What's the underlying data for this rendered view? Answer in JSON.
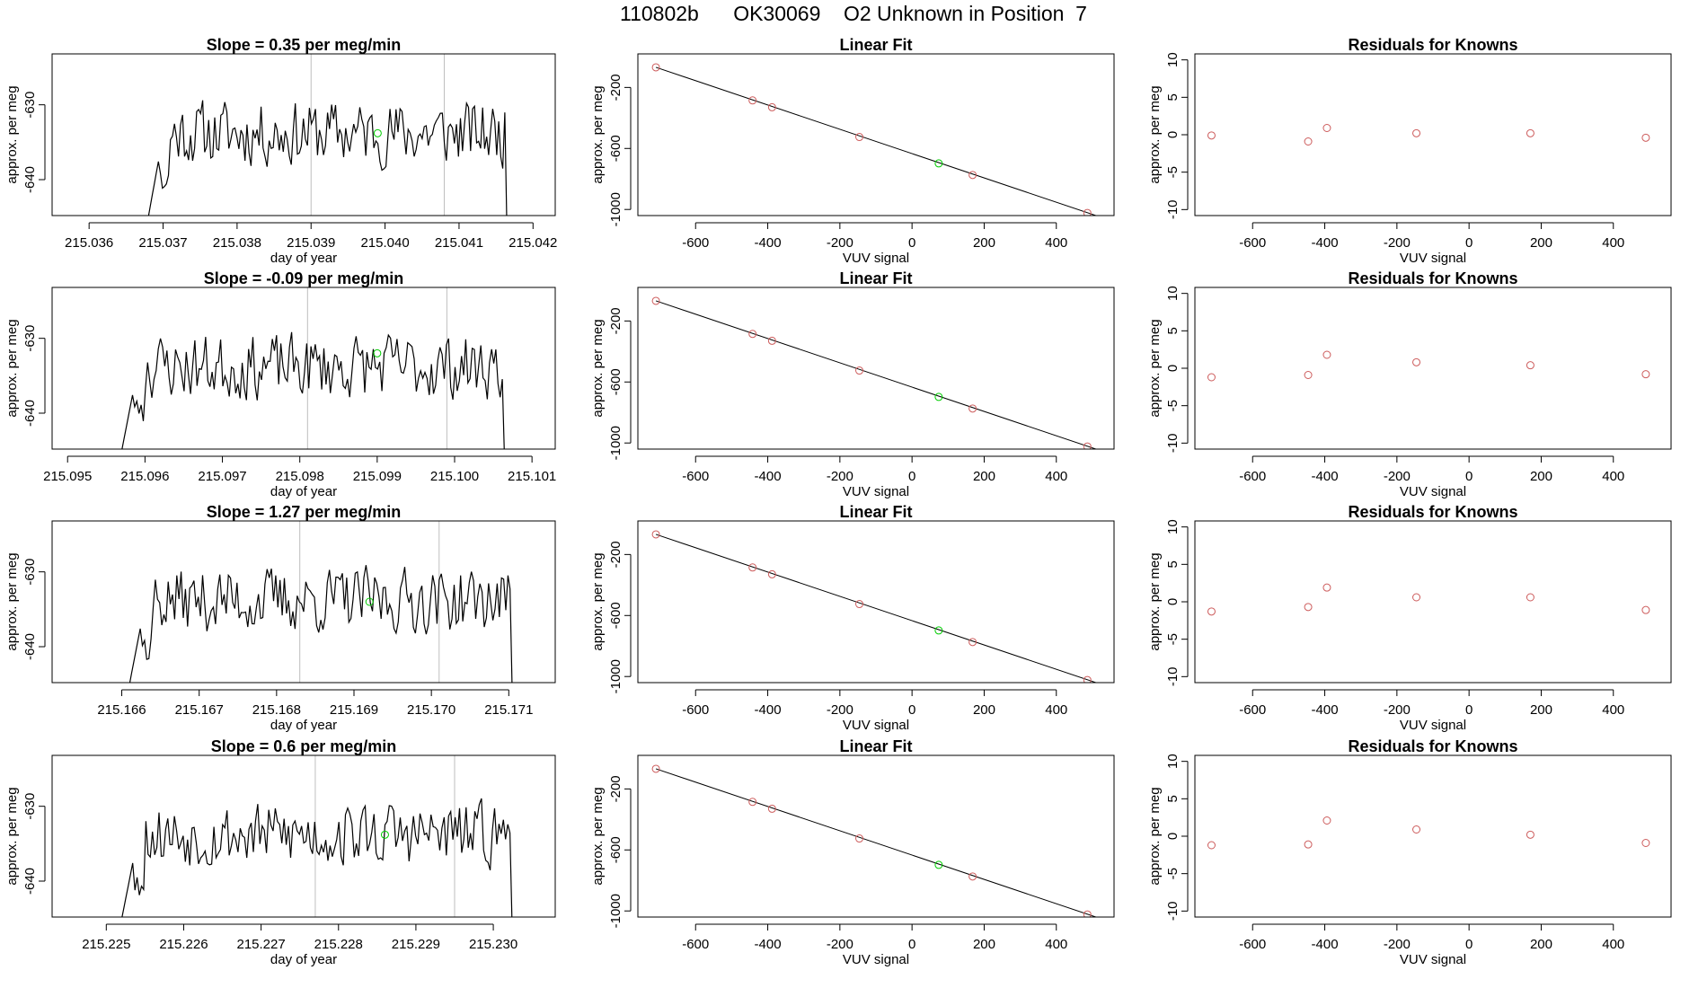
{
  "page_title": "110802b      OK30069    O2 Unknown in Position  7",
  "colors": {
    "trace": "#000000",
    "vline": "#bebebe",
    "known": "#cd5c5c",
    "unknown": "#00cd00",
    "fit": "#000000"
  },
  "chart_data": [
    {
      "type": "line",
      "title": "Slope =  0.35  per meg/min",
      "xlabel": "day of year",
      "ylabel": "approx. per meg",
      "xlim": [
        215.0355,
        215.0423
      ],
      "ylim": [
        -644.8,
        -623.2
      ],
      "xticks": [
        215.036,
        215.037,
        215.038,
        215.039,
        215.04,
        215.041,
        215.042
      ],
      "xtick_labels": [
        "215.036",
        "215.037",
        "215.038",
        "215.039",
        "215.040",
        "215.041",
        "215.042"
      ],
      "yticks": [
        -630,
        -640
      ],
      "ytick_labels": [
        "-630",
        "-640"
      ],
      "trace_x_range": [
        215.0368,
        215.0417
      ],
      "vlines": [
        215.039,
        215.0408
      ],
      "marker": {
        "x": 215.0399,
        "y": -633.8
      },
      "seed": 11
    },
    {
      "type": "scatter",
      "title": "Linear Fit",
      "xlabel": "VUV signal",
      "ylabel": "approx. per meg",
      "xlim": [
        -760,
        560
      ],
      "ylim": [
        -1040,
        20
      ],
      "xticks": [
        -600,
        -400,
        -200,
        0,
        200,
        400
      ],
      "xtick_labels": [
        "-600",
        "-400",
        "-200",
        "0",
        "200",
        "400"
      ],
      "yticks": [
        -200,
        -600,
        -1000
      ],
      "ytick_labels": [
        "-200",
        "-600",
        "-1000"
      ],
      "knowns": {
        "x": [
          -710,
          -442,
          -388,
          -146,
          168,
          486
        ],
        "y": [
          -68,
          -285,
          -330,
          -525,
          -774,
          -1023
        ]
      },
      "unknown": {
        "x": 74,
        "y": -698
      },
      "fit_line": {
        "x": [
          -710,
          545
        ],
        "y": [
          -68,
          -1068
        ]
      }
    },
    {
      "type": "scatter",
      "title": "Residuals for Knowns",
      "xlabel": "VUV signal",
      "ylabel": "approx. per meg",
      "xlim": [
        -760,
        560
      ],
      "ylim": [
        -10.8,
        10.8
      ],
      "xticks": [
        -600,
        -400,
        -200,
        0,
        200,
        400
      ],
      "xtick_labels": [
        "-600",
        "-400",
        "-200",
        "0",
        "200",
        "400"
      ],
      "yticks": [
        -10,
        -5,
        0,
        5,
        10
      ],
      "ytick_labels": [
        "-10",
        "-5",
        "0",
        "5",
        "10"
      ],
      "points": {
        "x": [
          -714,
          -446,
          -394,
          -146,
          170,
          490
        ],
        "y": [
          -0.1,
          -0.9,
          0.9,
          0.2,
          0.2,
          -0.4
        ]
      }
    },
    {
      "type": "line",
      "title": "Slope =  -0.09  per meg/min",
      "xlabel": "day of year",
      "ylabel": "approx. per meg",
      "xlim": [
        215.0948,
        215.1013
      ],
      "ylim": [
        -644.8,
        -623.2
      ],
      "xticks": [
        215.095,
        215.096,
        215.097,
        215.098,
        215.099,
        215.1,
        215.101
      ],
      "xtick_labels": [
        "215.095",
        "215.096",
        "215.097",
        "215.098",
        "215.099",
        "215.100",
        "215.101"
      ],
      "yticks": [
        -630,
        -640
      ],
      "ytick_labels": [
        "-630",
        "-640"
      ],
      "trace_x_range": [
        215.0957,
        215.1007
      ],
      "vlines": [
        215.0981,
        215.0999
      ],
      "marker": {
        "x": 215.099,
        "y": -632.0
      },
      "seed": 23
    },
    {
      "type": "scatter",
      "title": "Linear Fit",
      "xlabel": "VUV signal",
      "ylabel": "approx. per meg",
      "xlim": [
        -760,
        560
      ],
      "ylim": [
        -1040,
        20
      ],
      "xticks": [
        -600,
        -400,
        -200,
        0,
        200,
        400
      ],
      "xtick_labels": [
        "-600",
        "-400",
        "-200",
        "0",
        "200",
        "400"
      ],
      "yticks": [
        -200,
        -600,
        -1000
      ],
      "ytick_labels": [
        "-200",
        "-600",
        "-1000"
      ],
      "knowns": {
        "x": [
          -710,
          -442,
          -388,
          -146,
          168,
          486
        ],
        "y": [
          -68,
          -285,
          -330,
          -525,
          -774,
          -1023
        ]
      },
      "unknown": {
        "x": 74,
        "y": -698
      },
      "fit_line": {
        "x": [
          -710,
          545
        ],
        "y": [
          -68,
          -1068
        ]
      }
    },
    {
      "type": "scatter",
      "title": "Residuals for Knowns",
      "xlabel": "VUV signal",
      "ylabel": "approx. per meg",
      "xlim": [
        -760,
        560
      ],
      "ylim": [
        -10.8,
        10.8
      ],
      "xticks": [
        -600,
        -400,
        -200,
        0,
        200,
        400
      ],
      "xtick_labels": [
        "-600",
        "-400",
        "-200",
        "0",
        "200",
        "400"
      ],
      "yticks": [
        -10,
        -5,
        0,
        5,
        10
      ],
      "ytick_labels": [
        "-10",
        "-5",
        "0",
        "5",
        "10"
      ],
      "points": {
        "x": [
          -714,
          -446,
          -394,
          -146,
          170,
          490
        ],
        "y": [
          -1.2,
          -0.9,
          1.8,
          0.8,
          0.4,
          -0.8
        ]
      }
    },
    {
      "type": "line",
      "title": "Slope =  1.27  per meg/min",
      "xlabel": "day of year",
      "ylabel": "approx. per meg",
      "xlim": [
        215.1651,
        215.1716
      ],
      "ylim": [
        -644.8,
        -623.2
      ],
      "xticks": [
        215.166,
        215.167,
        215.168,
        215.169,
        215.17,
        215.171
      ],
      "xtick_labels": [
        "215.166",
        "215.167",
        "215.168",
        "215.169",
        "215.170",
        "215.171"
      ],
      "yticks": [
        -630,
        -640
      ],
      "ytick_labels": [
        "-630",
        "-640"
      ],
      "trace_x_range": [
        215.1661,
        215.1711
      ],
      "vlines": [
        215.1683,
        215.1701
      ],
      "marker": {
        "x": 215.1692,
        "y": -634.0
      },
      "seed": 37
    },
    {
      "type": "scatter",
      "title": "Linear Fit",
      "xlabel": "VUV signal",
      "ylabel": "approx. per meg",
      "xlim": [
        -760,
        560
      ],
      "ylim": [
        -1040,
        20
      ],
      "xticks": [
        -600,
        -400,
        -200,
        0,
        200,
        400
      ],
      "xtick_labels": [
        "-600",
        "-400",
        "-200",
        "0",
        "200",
        "400"
      ],
      "yticks": [
        -200,
        -600,
        -1000
      ],
      "ytick_labels": [
        "-200",
        "-600",
        "-1000"
      ],
      "knowns": {
        "x": [
          -710,
          -442,
          -388,
          -146,
          168,
          486
        ],
        "y": [
          -68,
          -285,
          -330,
          -525,
          -774,
          -1023
        ]
      },
      "unknown": {
        "x": 74,
        "y": -698
      },
      "fit_line": {
        "x": [
          -710,
          545
        ],
        "y": [
          -68,
          -1068
        ]
      }
    },
    {
      "type": "scatter",
      "title": "Residuals for Knowns",
      "xlabel": "VUV signal",
      "ylabel": "approx. per meg",
      "xlim": [
        -760,
        560
      ],
      "ylim": [
        -10.8,
        10.8
      ],
      "xticks": [
        -600,
        -400,
        -200,
        0,
        200,
        400
      ],
      "xtick_labels": [
        "-600",
        "-400",
        "-200",
        "0",
        "200",
        "400"
      ],
      "yticks": [
        -10,
        -5,
        0,
        5,
        10
      ],
      "ytick_labels": [
        "-10",
        "-5",
        "0",
        "5",
        "10"
      ],
      "points": {
        "x": [
          -714,
          -446,
          -394,
          -146,
          170,
          490
        ],
        "y": [
          -1.3,
          -0.7,
          1.9,
          0.6,
          0.6,
          -1.1
        ]
      }
    },
    {
      "type": "line",
      "title": "Slope =  0.6  per meg/min",
      "xlabel": "day of year",
      "ylabel": "approx. per meg",
      "xlim": [
        215.2243,
        215.2308
      ],
      "ylim": [
        -644.8,
        -623.2
      ],
      "xticks": [
        215.225,
        215.226,
        215.227,
        215.228,
        215.229,
        215.23
      ],
      "xtick_labels": [
        "215.225",
        "215.226",
        "215.227",
        "215.228",
        "215.229",
        "215.230"
      ],
      "yticks": [
        -630,
        -640
      ],
      "ytick_labels": [
        "-630",
        "-640"
      ],
      "trace_x_range": [
        215.2252,
        215.2303
      ],
      "vlines": [
        215.2277,
        215.2295
      ],
      "marker": {
        "x": 215.2286,
        "y": -633.8
      },
      "seed": 53
    },
    {
      "type": "scatter",
      "title": "Linear Fit",
      "xlabel": "VUV signal",
      "ylabel": "approx. per meg",
      "xlim": [
        -760,
        560
      ],
      "ylim": [
        -1040,
        20
      ],
      "xticks": [
        -600,
        -400,
        -200,
        0,
        200,
        400
      ],
      "xtick_labels": [
        "-600",
        "-400",
        "-200",
        "0",
        "200",
        "400"
      ],
      "yticks": [
        -200,
        -600,
        -1000
      ],
      "ytick_labels": [
        "-200",
        "-600",
        "-1000"
      ],
      "knowns": {
        "x": [
          -710,
          -442,
          -388,
          -146,
          168,
          486
        ],
        "y": [
          -68,
          -285,
          -330,
          -525,
          -774,
          -1023
        ]
      },
      "unknown": {
        "x": 74,
        "y": -698
      },
      "fit_line": {
        "x": [
          -710,
          545
        ],
        "y": [
          -68,
          -1068
        ]
      }
    },
    {
      "type": "scatter",
      "title": "Residuals for Knowns",
      "xlabel": "VUV signal",
      "ylabel": "approx. per meg",
      "xlim": [
        -760,
        560
      ],
      "ylim": [
        -10.8,
        10.8
      ],
      "xticks": [
        -600,
        -400,
        -200,
        0,
        200,
        400
      ],
      "xtick_labels": [
        "-600",
        "-400",
        "-200",
        "0",
        "200",
        "400"
      ],
      "yticks": [
        -10,
        -5,
        0,
        5,
        10
      ],
      "ytick_labels": [
        "-10",
        "-5",
        "0",
        "5",
        "10"
      ],
      "points": {
        "x": [
          -714,
          -446,
          -394,
          -146,
          170,
          490
        ],
        "y": [
          -1.2,
          -1.1,
          2.1,
          0.9,
          0.2,
          -0.9
        ]
      }
    }
  ]
}
